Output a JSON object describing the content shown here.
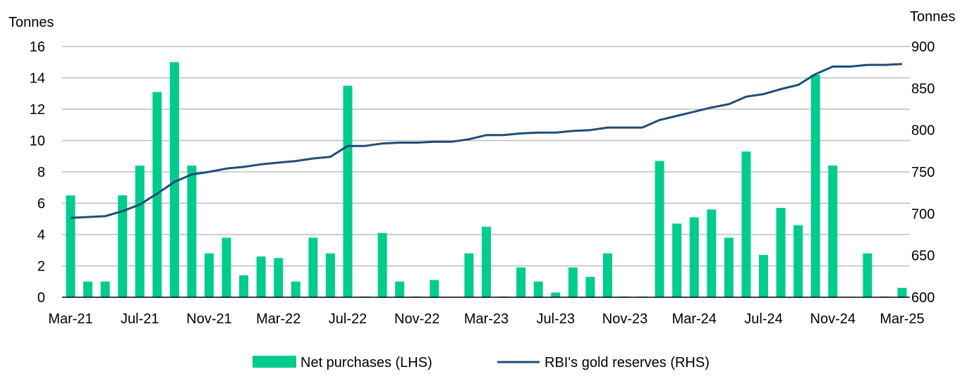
{
  "chart_data": {
    "type": "bar",
    "left_unit": "Tonnes",
    "right_unit": "Tonnes",
    "ylim_left": [
      0,
      16
    ],
    "yticks_left": [
      "0",
      "2",
      "4",
      "6",
      "8",
      "10",
      "12",
      "14",
      "16"
    ],
    "ylim_right": [
      600,
      900
    ],
    "yticks_right": [
      "600",
      "650",
      "700",
      "750",
      "800",
      "850",
      "900"
    ],
    "grid": true,
    "legend_position": "bottom",
    "xtick_labels": [
      "Mar-21",
      "Jul-21",
      "Nov-21",
      "Mar-22",
      "Jul-22",
      "Nov-22",
      "Mar-23",
      "Jul-23",
      "Nov-23",
      "Mar-24",
      "Jul-24",
      "Nov-24",
      "Mar-25"
    ],
    "categories": [
      "Mar-21",
      "Apr-21",
      "May-21",
      "Jun-21",
      "Jul-21",
      "Aug-21",
      "Sep-21",
      "Oct-21",
      "Nov-21",
      "Dec-21",
      "Jan-22",
      "Feb-22",
      "Mar-22",
      "Apr-22",
      "May-22",
      "Jun-22",
      "Jul-22",
      "Aug-22",
      "Sep-22",
      "Oct-22",
      "Nov-22",
      "Dec-22",
      "Jan-23",
      "Feb-23",
      "Mar-23",
      "Apr-23",
      "May-23",
      "Jun-23",
      "Jul-23",
      "Aug-23",
      "Sep-23",
      "Oct-23",
      "Nov-23",
      "Dec-23",
      "Jan-24",
      "Feb-24",
      "Mar-24",
      "Apr-24",
      "May-24",
      "Jun-24",
      "Jul-24",
      "Aug-24",
      "Sep-24",
      "Oct-24",
      "Nov-24",
      "Dec-24",
      "Jan-25",
      "Feb-25",
      "Mar-25"
    ],
    "series": [
      {
        "name": "Net purchases (LHS)",
        "type": "bar",
        "axis": "left",
        "color": "#00CC8E",
        "values": [
          6.5,
          1.0,
          1.0,
          6.5,
          8.4,
          13.1,
          15.0,
          8.4,
          2.8,
          3.8,
          1.4,
          2.6,
          2.5,
          1.0,
          3.8,
          2.8,
          13.5,
          0.05,
          4.1,
          1.0,
          0.05,
          1.1,
          0.0,
          2.8,
          4.5,
          0.05,
          1.9,
          1.0,
          0.3,
          1.9,
          1.3,
          2.8,
          0.05,
          0.05,
          8.7,
          4.7,
          5.1,
          5.6,
          3.8,
          9.3,
          2.7,
          5.7,
          4.6,
          14.2,
          8.4,
          0.0,
          2.8,
          0.05,
          0.6
        ]
      },
      {
        "name": "RBI's gold reserves (RHS)",
        "type": "line",
        "axis": "right",
        "color": "#1F4E79",
        "values": [
          695,
          696,
          697,
          703,
          711,
          724,
          738,
          747,
          750,
          754,
          756,
          759,
          761,
          763,
          766,
          768,
          781,
          781,
          784,
          785,
          785,
          786,
          786,
          789,
          794,
          794,
          796,
          797,
          797,
          799,
          800,
          803,
          803,
          803,
          812,
          817,
          822,
          827,
          831,
          840,
          843,
          849,
          854,
          867,
          876,
          876,
          878,
          878,
          879
        ]
      }
    ]
  }
}
